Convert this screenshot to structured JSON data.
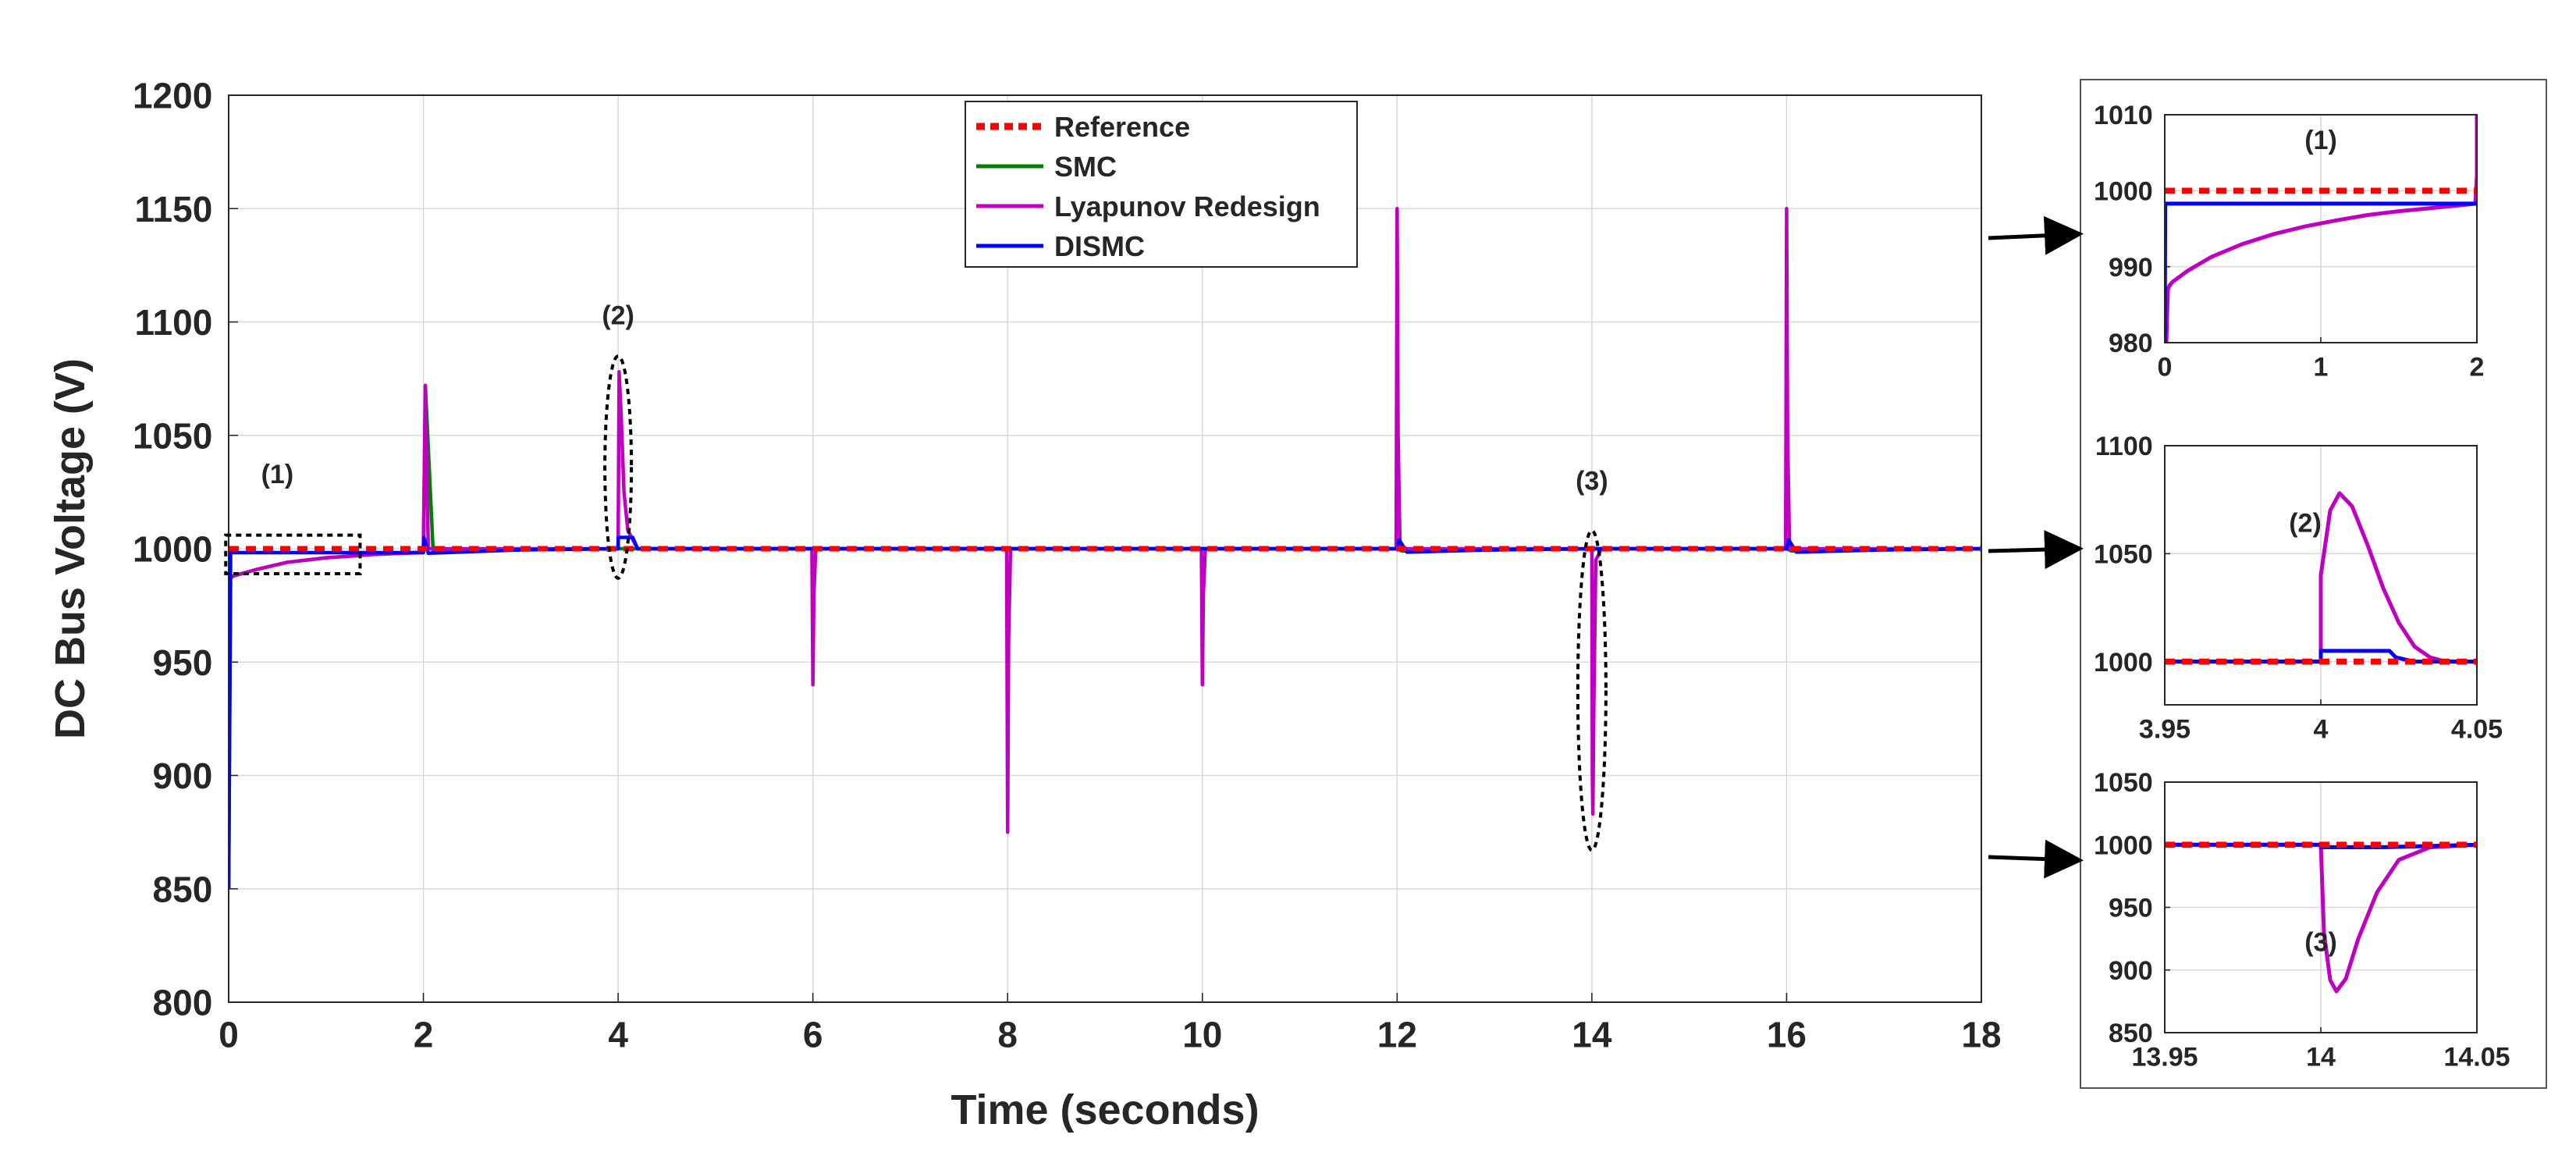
{
  "chart_data": {
    "type": "line",
    "xlabel": "Time (seconds)",
    "ylabel": "DC Bus Voltage (V)",
    "xlim": [
      0,
      18
    ],
    "ylim": [
      800,
      1200
    ],
    "xticks": [
      "0",
      "2",
      "4",
      "6",
      "8",
      "10",
      "12",
      "14",
      "16",
      "18"
    ],
    "yticks": [
      "800",
      "850",
      "900",
      "950",
      "1000",
      "1050",
      "1100",
      "1150",
      "1200"
    ],
    "grid": true,
    "legend_position": "top-center",
    "series": [
      {
        "name": "Reference",
        "color": "#ff0000",
        "style": "dotted",
        "x": [
          0,
          18
        ],
        "y": [
          1000,
          1000
        ]
      },
      {
        "name": "SMC",
        "color": "#008000",
        "style": "solid",
        "x": [
          0,
          0.02,
          0.05,
          0.3,
          0.6,
          1.0,
          1.5,
          2.0,
          2.02,
          2.1,
          3.0,
          4.0,
          6.0,
          8.0,
          10.0,
          12.0,
          12.05,
          13.0,
          14.0,
          16.0,
          16.05,
          17.0,
          18.0
        ],
        "y": [
          850,
          987,
          988,
          991,
          994,
          996,
          997.5,
          998.5,
          1072,
          999,
          999.5,
          1000,
          1000,
          1000,
          1000,
          1000,
          999,
          999.5,
          1000,
          1000,
          999,
          999.5,
          1000
        ]
      },
      {
        "name": "Lyapunov Redesign",
        "color": "#c000c0",
        "style": "solid",
        "x": [
          0,
          0.01,
          0.05,
          0.3,
          0.6,
          1.0,
          1.5,
          1.99,
          2.0,
          2.02,
          2.05,
          3.99,
          4.0,
          4.01,
          4.03,
          4.06,
          4.1,
          4.2,
          5.99,
          6.0,
          6.01,
          6.03,
          7.99,
          8.0,
          8.01,
          8.03,
          9.99,
          10.0,
          10.01,
          10.03,
          11.99,
          12.0,
          12.01,
          12.03,
          13.99,
          14.0,
          14.005,
          14.01,
          14.02,
          14.04,
          14.1,
          15.99,
          16.0,
          16.01,
          16.03,
          18.0
        ],
        "y": [
          850,
          987,
          988,
          991,
          994,
          996,
          997.5,
          998.3,
          1000,
          1072,
          1000,
          1000,
          1000,
          1078,
          1060,
          1025,
          1008,
          1000,
          1000,
          940,
          980,
          1000,
          1000,
          875,
          960,
          1000,
          1000,
          940,
          980,
          1000,
          1000,
          1150,
          1050,
          1000,
          1000,
          1000,
          900,
          883,
          930,
          995,
          1000,
          1000,
          1150,
          1050,
          1000,
          1000
        ]
      },
      {
        "name": "DISMC",
        "color": "#0000ff",
        "style": "solid",
        "x": [
          0,
          0.02,
          2.0,
          2.005,
          2.05,
          3.0,
          4.0,
          4.001,
          4.15,
          4.2,
          6.0,
          8.0,
          10.0,
          12.0,
          12.02,
          12.1,
          13.0,
          14.0,
          14.05,
          16.0,
          16.02,
          16.1,
          17.0,
          18.0
        ],
        "y": [
          850,
          998.3,
          998.3,
          1005,
          998,
          999.5,
          1000,
          1005,
          1005,
          1000,
          1000,
          1000,
          1000,
          1000,
          1004,
          998.5,
          999.5,
          1000,
          1000,
          1000,
          1004,
          998.5,
          999.5,
          1000
        ]
      }
    ],
    "annotations": [
      {
        "label": "(1)",
        "x": 0.5,
        "y": 1029
      },
      {
        "label": "(2)",
        "x": 4.0,
        "y": 1099
      },
      {
        "label": "(3)",
        "x": 14.0,
        "y": 1026
      }
    ],
    "insets": [
      {
        "label": "(1)",
        "xlim": [
          0,
          2
        ],
        "ylim": [
          980,
          1010
        ],
        "xticks": [
          "0",
          "1",
          "2"
        ],
        "yticks": [
          "980",
          "990",
          "1000",
          "1010"
        ],
        "series": [
          {
            "name": "Reference",
            "color": "#ff0000",
            "style": "dotted",
            "x": [
              0,
              2
            ],
            "y": [
              1000,
              1000
            ]
          },
          {
            "name": "Lyapunov Redesign",
            "color": "#c000c0",
            "style": "solid",
            "x": [
              0,
              0.01,
              0.02,
              0.03,
              0.05,
              0.15,
              0.3,
              0.5,
              0.7,
              0.9,
              1.1,
              1.3,
              1.5,
              1.7,
              1.9,
              1.99,
              2.0,
              2.0
            ],
            "y": [
              980,
              980,
              987,
              987.5,
              988,
              989.5,
              991.3,
              993,
              994.3,
              995.3,
              996.1,
              996.8,
              997.3,
              997.7,
              998.1,
              998.3,
              1002,
              1010
            ]
          },
          {
            "name": "DISMC",
            "color": "#0000ff",
            "style": "solid",
            "x": [
              0,
              0.003,
              0.01,
              2.0
            ],
            "y": [
              980,
              998.3,
              998.3,
              998.3
            ]
          }
        ]
      },
      {
        "label": "(2)",
        "xlim": [
          3.95,
          4.05
        ],
        "ylim": [
          980,
          1100
        ],
        "xticks": [
          "3.95",
          "4",
          "4.05"
        ],
        "yticks": [
          "1000",
          "1050",
          "1100"
        ],
        "series": [
          {
            "name": "Reference",
            "color": "#ff0000",
            "style": "dotted",
            "x": [
              3.95,
              4.05
            ],
            "y": [
              1000,
              1000
            ]
          },
          {
            "name": "Lyapunov Redesign",
            "color": "#c000c0",
            "style": "solid",
            "x": [
              3.95,
              4.0,
              4.0,
              4.003,
              4.006,
              4.01,
              4.015,
              4.02,
              4.025,
              4.03,
              4.035,
              4.04,
              4.05
            ],
            "y": [
              1000,
              1000,
              1040,
              1070,
              1078,
              1072,
              1054,
              1034,
              1018,
              1007,
              1002,
              1000,
              1000
            ]
          },
          {
            "name": "DISMC",
            "color": "#0000ff",
            "style": "solid",
            "x": [
              3.95,
              4.0,
              4.0,
              4.022,
              4.024,
              4.03,
              4.05
            ],
            "y": [
              1000,
              1000,
              1005,
              1005,
              1002,
              1000,
              1000
            ]
          }
        ]
      },
      {
        "label": "(3)",
        "xlim": [
          13.95,
          14.05
        ],
        "ylim": [
          850,
          1050
        ],
        "xticks": [
          "13.95",
          "14",
          "14.05"
        ],
        "yticks": [
          "850",
          "900",
          "950",
          "1000",
          "1050"
        ],
        "series": [
          {
            "name": "Reference",
            "color": "#ff0000",
            "style": "dotted",
            "x": [
              13.95,
              14.05
            ],
            "y": [
              1000,
              1000
            ]
          },
          {
            "name": "Lyapunov Redesign",
            "color": "#c000c0",
            "style": "solid",
            "x": [
              13.95,
              14.0,
              14.001,
              14.003,
              14.005,
              14.008,
              14.012,
              14.018,
              14.025,
              14.035,
              14.05
            ],
            "y": [
              1000,
              1000,
              930,
              892,
              883,
              893,
              925,
              962,
              988,
              998,
              1000
            ]
          },
          {
            "name": "DISMC",
            "color": "#0000ff",
            "style": "solid",
            "x": [
              13.95,
              14.0,
              14.0,
              14.02,
              14.05
            ],
            "y": [
              1000,
              1000,
              998,
              998,
              1000
            ]
          }
        ]
      }
    ]
  }
}
